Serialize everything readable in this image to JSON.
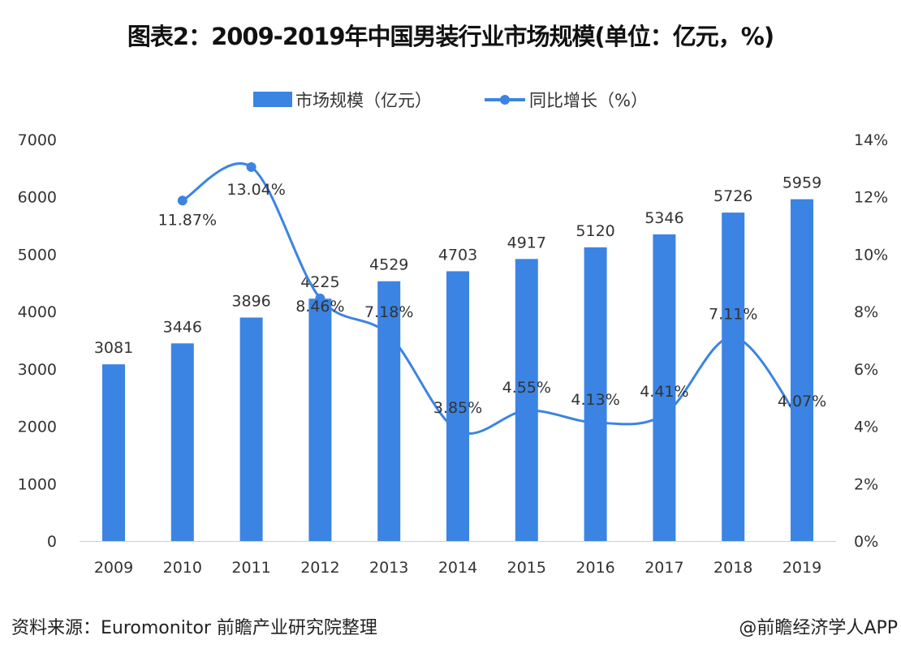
{
  "chart_data": {
    "type": "bar+line",
    "title": "图表2：2009-2019年中国男装行业市场规模(单位：亿元，%)",
    "categories": [
      "2009",
      "2010",
      "2011",
      "2012",
      "2013",
      "2014",
      "2015",
      "2016",
      "2017",
      "2018",
      "2019"
    ],
    "series": [
      {
        "name": "市场规模（亿元）",
        "type": "bar",
        "axis": "left",
        "values": [
          3081,
          3446,
          3896,
          4225,
          4529,
          4703,
          4917,
          5120,
          5346,
          5726,
          5959
        ],
        "labels": [
          "3081",
          "3446",
          "3896",
          "4225",
          "4529",
          "4703",
          "4917",
          "5120",
          "5346",
          "5726",
          "5959"
        ]
      },
      {
        "name": "同比增长（%）",
        "type": "line",
        "axis": "right",
        "values": [
          null,
          11.87,
          13.04,
          8.46,
          7.18,
          3.85,
          4.55,
          4.13,
          4.41,
          7.11,
          4.07
        ],
        "labels": [
          "",
          "11.87%",
          "13.04%",
          "8.46%",
          "7.18%",
          "3.85%",
          "4.55%",
          "4.13%",
          "4.41%",
          "7.11%",
          "4.07%"
        ]
      }
    ],
    "left_axis": {
      "ylim": [
        0,
        7000
      ],
      "ticks": [
        "0",
        "1000",
        "2000",
        "3000",
        "4000",
        "5000",
        "6000",
        "7000"
      ]
    },
    "right_axis": {
      "ylim": [
        0,
        14
      ],
      "ticks": [
        "0%",
        "2%",
        "4%",
        "6%",
        "8%",
        "10%",
        "12%",
        "14%"
      ]
    },
    "grid": false,
    "legend": "top",
    "colors": {
      "bar": "#3b84e3",
      "line": "#3b84e3"
    }
  },
  "footer": {
    "source": "资料来源：Euromonitor  前瞻产业研究院整理",
    "credit": "@前瞻经济学人APP"
  }
}
